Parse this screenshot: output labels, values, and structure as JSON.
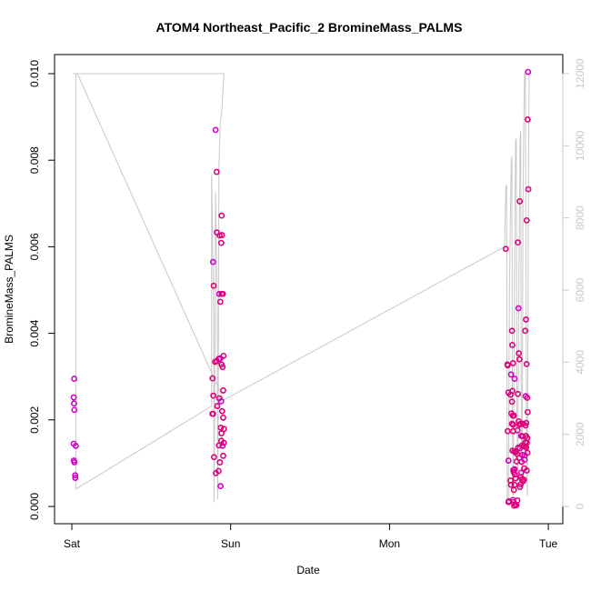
{
  "chart_data": {
    "type": "scatter",
    "title": "ATOM4 Northeast_Pacific_2 BromineMass_PALMS",
    "xlabel": "Date",
    "ylabel": "BromineMass_PALMS",
    "x_ticks": [
      "Sat",
      "Sun",
      "Mon",
      "Tue"
    ],
    "y_ticks": [
      "0.000",
      "0.002",
      "0.004",
      "0.006",
      "0.008",
      "0.010"
    ],
    "y_right_ticks": [
      "0",
      "2000",
      "4000",
      "6000",
      "8000",
      "10000",
      "12000"
    ],
    "xlim_days": [
      -0.02,
      3.02
    ],
    "ylim": [
      0,
      0.01
    ],
    "ylim_right": [
      0,
      12000
    ],
    "colors": {
      "points": "#e0007a",
      "points_alt": "#d000c8",
      "altitude_line": "#c8c8c8"
    },
    "series": [
      {
        "type": "scatter",
        "points": [
          [
            0.015,
            0.00295
          ],
          [
            0.012,
            0.00252
          ],
          [
            0.014,
            0.00238
          ],
          [
            0.016,
            0.00223
          ],
          [
            0.012,
            0.00145
          ],
          [
            0.025,
            0.0014
          ],
          [
            0.013,
            0.00106
          ],
          [
            0.016,
            0.00102
          ],
          [
            0.021,
            0.00072
          ],
          [
            0.022,
            0.00066
          ],
          [
            0.889,
            0.00565
          ],
          [
            0.893,
            0.0051
          ],
          [
            0.886,
            0.00296
          ],
          [
            0.891,
            0.00256
          ],
          [
            0.885,
            0.00214
          ],
          [
            0.889,
            0.00214
          ],
          [
            0.895,
            0.00114
          ],
          [
            0.905,
            0.0087
          ],
          [
            0.912,
            0.00773
          ],
          [
            0.913,
            0.00633
          ],
          [
            0.931,
            0.00626
          ],
          [
            0.945,
            0.00627
          ],
          [
            0.943,
            0.00672
          ],
          [
            0.941,
            0.00609
          ],
          [
            0.928,
            0.00491
          ],
          [
            0.944,
            0.00491
          ],
          [
            0.951,
            0.00491
          ],
          [
            0.935,
            0.00473
          ],
          [
            0.902,
            0.00334
          ],
          [
            0.912,
            0.00336
          ],
          [
            0.926,
            0.00341
          ],
          [
            0.935,
            0.00342
          ],
          [
            0.955,
            0.00348
          ],
          [
            0.943,
            0.00328
          ],
          [
            0.949,
            0.00322
          ],
          [
            0.953,
            0.00268
          ],
          [
            0.916,
            0.00232
          ],
          [
            0.928,
            0.0025
          ],
          [
            0.94,
            0.00243
          ],
          [
            0.946,
            0.0022
          ],
          [
            0.953,
            0.00205
          ],
          [
            0.958,
            0.00179
          ],
          [
            0.938,
            0.00182
          ],
          [
            0.942,
            0.00169
          ],
          [
            0.941,
            0.00152
          ],
          [
            0.949,
            0.0014
          ],
          [
            0.926,
            0.00141
          ],
          [
            0.957,
            0.00147
          ],
          [
            0.953,
            0.00117
          ],
          [
            0.932,
            0.00102
          ],
          [
            0.924,
            0.00082
          ],
          [
            0.907,
            0.00077
          ],
          [
            0.936,
            0.00047
          ],
          [
            2.732,
            0.00595
          ],
          [
            2.742,
            0.00328
          ],
          [
            2.744,
            0.00326
          ],
          [
            2.749,
            0.00263
          ],
          [
            2.762,
            0.00258
          ],
          [
            2.744,
            0.00174
          ],
          [
            2.749,
            0.00106
          ],
          [
            2.751,
            0.00012
          ],
          [
            2.749,
            0.0001
          ],
          [
            2.762,
            0.0006
          ],
          [
            2.765,
            0.0005
          ],
          [
            2.771,
            0.00406
          ],
          [
            2.773,
            0.00373
          ],
          [
            2.765,
            0.00305
          ],
          [
            2.778,
            0.00331
          ],
          [
            2.773,
            0.00267
          ],
          [
            2.771,
            0.00242
          ],
          [
            2.767,
            0.00215
          ],
          [
            2.776,
            0.0021
          ],
          [
            2.771,
            0.00191
          ],
          [
            2.787,
            0.00295
          ],
          [
            2.783,
            0.0021
          ],
          [
            2.779,
            0.00189
          ],
          [
            2.778,
            0.00174
          ],
          [
            2.774,
            0.00129
          ],
          [
            2.785,
            0.00127
          ],
          [
            2.792,
            0.00125
          ],
          [
            2.779,
            0.00084
          ],
          [
            2.787,
            0.00086
          ],
          [
            2.782,
            0.00079
          ],
          [
            2.789,
            0.00074
          ],
          [
            2.793,
            0.00065
          ],
          [
            2.787,
            0.0005
          ],
          [
            2.783,
            0.00038
          ],
          [
            2.778,
            0.00015
          ],
          [
            2.781,
            0.0001
          ],
          [
            2.785,
            2e-05
          ],
          [
            2.792,
            5e-05
          ],
          [
            2.799,
            3e-05
          ],
          [
            2.805,
            0.00014
          ],
          [
            2.808,
            0.0061
          ],
          [
            2.812,
            0.00458
          ],
          [
            2.814,
            0.00354
          ],
          [
            2.818,
            0.0034
          ],
          [
            2.82,
            0.00705
          ],
          [
            2.808,
            0.0026
          ],
          [
            2.813,
            0.00197
          ],
          [
            2.818,
            0.00189
          ],
          [
            2.82,
            0.00134
          ],
          [
            2.806,
            0.00176
          ],
          [
            2.81,
            0.00136
          ],
          [
            2.803,
            0.00121
          ],
          [
            2.8,
            0.00104
          ],
          [
            2.816,
            0.00112
          ],
          [
            2.826,
            0.00191
          ],
          [
            2.829,
            0.00163
          ],
          [
            2.834,
            0.00141
          ],
          [
            2.838,
            0.00162
          ],
          [
            2.84,
            0.00191
          ],
          [
            2.843,
            0.00139
          ],
          [
            2.836,
            0.00119
          ],
          [
            2.832,
            0.00103
          ],
          [
            2.829,
            0.00078
          ],
          [
            2.826,
            0.00068
          ],
          [
            2.821,
            0.00045
          ],
          [
            2.826,
            0.00051
          ],
          [
            2.833,
            0.00063
          ],
          [
            2.841,
            0.00058
          ],
          [
            2.846,
            0.00062
          ],
          [
            2.851,
            0.00108
          ],
          [
            2.853,
            0.00139
          ],
          [
            2.856,
            0.00187
          ],
          [
            2.854,
            0.00406
          ],
          [
            2.859,
            0.00432
          ],
          [
            2.863,
            0.00661
          ],
          [
            2.863,
            0.00329
          ],
          [
            2.857,
            0.00255
          ],
          [
            2.867,
            0.00251
          ],
          [
            2.861,
            0.00193
          ],
          [
            2.859,
            0.00163
          ],
          [
            2.865,
            0.00147
          ],
          [
            2.868,
            0.00124
          ],
          [
            2.87,
            0.00894
          ],
          [
            2.872,
            0.01004
          ],
          [
            2.874,
            0.00733
          ],
          [
            2.864,
            0.00083
          ],
          [
            2.87,
            0.00218
          ],
          [
            2.867,
            0.00158
          ],
          [
            2.861,
            0.00136
          ],
          [
            2.855,
            0.00148
          ],
          [
            2.851,
            0.00118
          ],
          [
            2.848,
            0.00088
          ]
        ]
      },
      {
        "type": "line",
        "axis": "right",
        "points": [
          [
            0.008,
            12000
          ],
          [
            0.015,
            12000
          ],
          [
            0.02,
            12000
          ],
          [
            0.025,
            12000
          ],
          [
            0.025,
            480
          ],
          [
            0.88,
            2780
          ],
          [
            0.88,
            9200
          ],
          [
            0.893,
            5200
          ],
          [
            0.895,
            120
          ],
          [
            0.899,
            2600
          ],
          [
            0.905,
            8700
          ],
          [
            0.909,
            7500
          ],
          [
            0.915,
            5900
          ],
          [
            0.918,
            200
          ],
          [
            0.922,
            2800
          ],
          [
            0.926,
            9400
          ],
          [
            0.935,
            10700
          ],
          [
            0.943,
            10900
          ],
          [
            0.95,
            11400
          ],
          [
            0.957,
            11900
          ],
          [
            0.957,
            12000
          ],
          [
            0.02,
            12000
          ],
          [
            0.035,
            12000
          ],
          [
            0.957,
            2950
          ],
          [
            2.724,
            7200
          ],
          [
            2.733,
            8900
          ],
          [
            2.737,
            8900
          ],
          [
            2.741,
            200
          ],
          [
            2.748,
            200
          ],
          [
            2.755,
            6000
          ],
          [
            2.761,
            8000
          ],
          [
            2.766,
            9500
          ],
          [
            2.77,
            9700
          ],
          [
            2.774,
            2200
          ],
          [
            2.779,
            300
          ],
          [
            2.785,
            4500
          ],
          [
            2.79,
            8300
          ],
          [
            2.794,
            10100
          ],
          [
            2.798,
            10200
          ],
          [
            2.802,
            2800
          ],
          [
            2.808,
            500
          ],
          [
            2.812,
            4700
          ],
          [
            2.818,
            8000
          ],
          [
            2.822,
            10200
          ],
          [
            2.826,
            10400
          ],
          [
            2.83,
            1500
          ],
          [
            2.835,
            500
          ],
          [
            2.84,
            8200
          ],
          [
            2.845,
            10500
          ],
          [
            2.85,
            12000
          ],
          [
            2.855,
            12000
          ],
          [
            2.86,
            5500
          ],
          [
            2.863,
            1500
          ],
          [
            2.867,
            300
          ],
          [
            2.871,
            4000
          ],
          [
            2.876,
            9800
          ],
          [
            2.879,
            12000
          ]
        ]
      }
    ]
  }
}
